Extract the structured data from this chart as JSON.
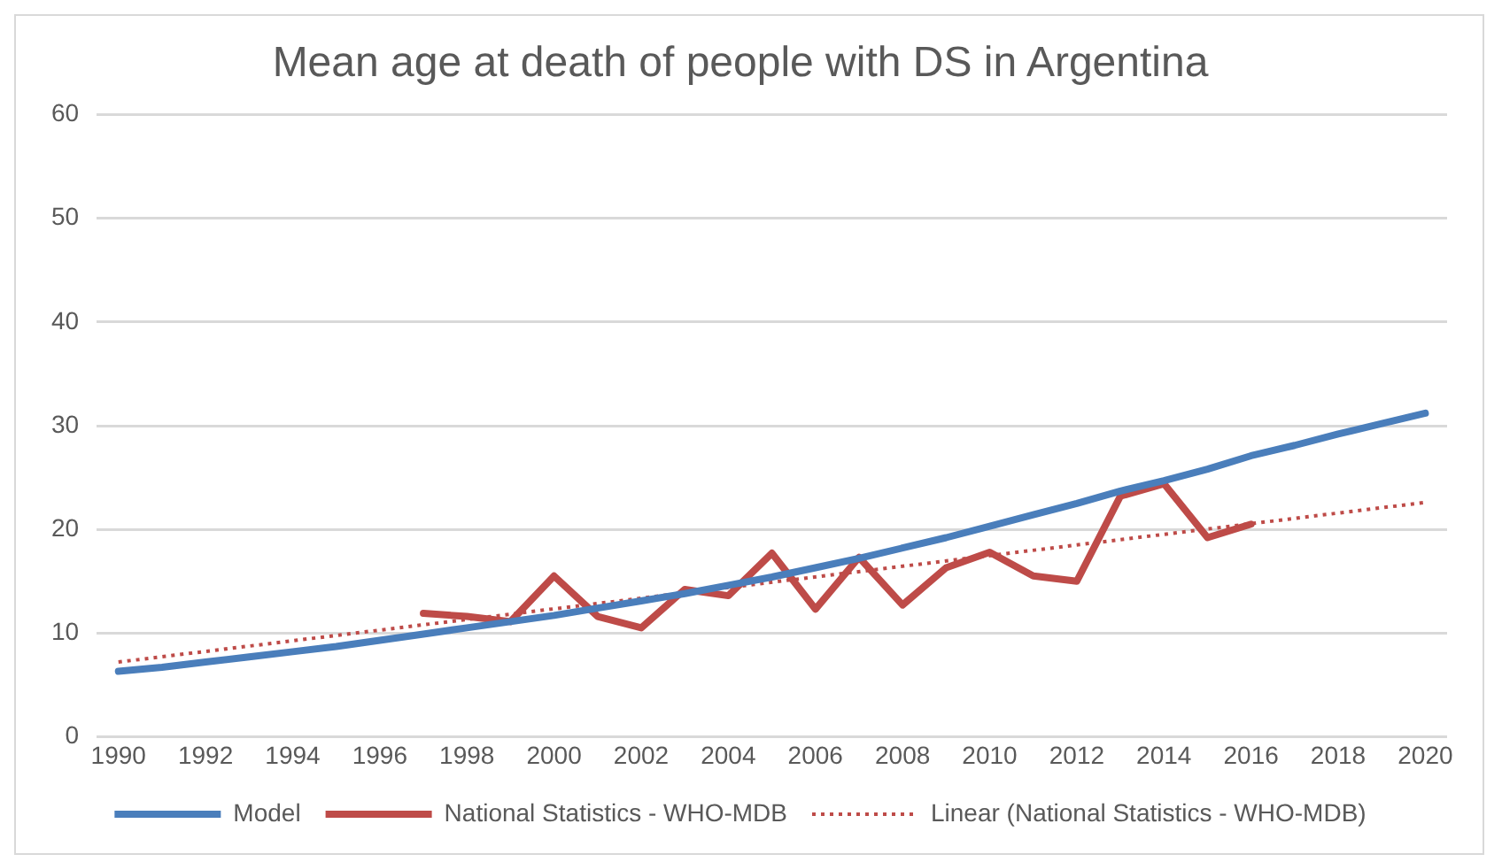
{
  "chart_data": {
    "type": "line",
    "title": "Mean age at death of people with DS in Argentina",
    "xlim": [
      1989.5,
      2020.5
    ],
    "xticks": [
      1990,
      1992,
      1994,
      1996,
      1998,
      2000,
      2002,
      2004,
      2006,
      2008,
      2010,
      2012,
      2014,
      2016,
      2018,
      2020
    ],
    "ylim": [
      0,
      60
    ],
    "yticks": [
      0,
      10,
      20,
      30,
      40,
      50,
      60
    ],
    "grid": "y",
    "legend": "bottom",
    "marker": "none",
    "series": [
      {
        "name": "Model",
        "color": "#4a7ebb",
        "x": [
          1990,
          1991,
          1992,
          1993,
          1994,
          1995,
          1996,
          1997,
          1998,
          1999,
          2000,
          2001,
          2002,
          2003,
          2004,
          2005,
          2006,
          2007,
          2008,
          2009,
          2010,
          2011,
          2012,
          2013,
          2014,
          2015,
          2016,
          2017,
          2018,
          2019,
          2020
        ],
        "values": [
          6.3,
          6.7,
          7.2,
          7.7,
          8.2,
          8.7,
          9.3,
          9.9,
          10.5,
          11.1,
          11.7,
          12.4,
          13.1,
          13.8,
          14.6,
          15.4,
          16.3,
          17.2,
          18.2,
          19.2,
          20.3,
          21.4,
          22.5,
          23.7,
          24.7,
          25.8,
          27.1,
          28.1,
          29.2,
          30.2,
          31.2
        ]
      },
      {
        "name": "National Statistics - WHO-MDB",
        "color": "#be4b48",
        "x": [
          1997,
          1998,
          1999,
          2000,
          2001,
          2002,
          2003,
          2004,
          2005,
          2006,
          2007,
          2008,
          2009,
          2010,
          2011,
          2012,
          2013,
          2014,
          2015,
          2016
        ],
        "values": [
          11.9,
          11.6,
          11.1,
          15.5,
          11.6,
          10.5,
          14.2,
          13.6,
          17.7,
          12.3,
          17.3,
          12.7,
          16.3,
          17.8,
          15.5,
          15.0,
          23.2,
          24.4,
          19.2,
          20.5
        ]
      },
      {
        "name": "Linear (National Statistics - WHO-MDB)",
        "color": "#be4b48",
        "line_style": "dotted",
        "x": [
          1990,
          2020
        ],
        "values": [
          7.2,
          22.6
        ]
      }
    ]
  }
}
